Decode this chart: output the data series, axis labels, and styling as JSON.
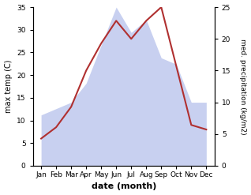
{
  "months": [
    "Jan",
    "Feb",
    "Mar",
    "Apr",
    "May",
    "Jun",
    "Jul",
    "Aug",
    "Sep",
    "Oct",
    "Nov",
    "Dec"
  ],
  "temperature": [
    6,
    8.5,
    13,
    21,
    27,
    32,
    28,
    32,
    35,
    22,
    9,
    8
  ],
  "precipitation": [
    8,
    9,
    10,
    13,
    19,
    25,
    21,
    23,
    17,
    16,
    10,
    10
  ],
  "temp_color": "#b03030",
  "precip_fill_color": "#c8d0f0",
  "precip_edge_color": "#a0aad8",
  "ylabel_left": "max temp (C)",
  "ylabel_right": "med. precipitation (kg/m2)",
  "xlabel": "date (month)",
  "ylim_left": [
    0,
    35
  ],
  "ylim_right": [
    0,
    25
  ],
  "yticks_left": [
    0,
    5,
    10,
    15,
    20,
    25,
    30,
    35
  ],
  "yticks_right": [
    0,
    5,
    10,
    15,
    20,
    25
  ],
  "figsize": [
    3.18,
    2.47
  ],
  "dpi": 100,
  "background_color": "#ffffff"
}
